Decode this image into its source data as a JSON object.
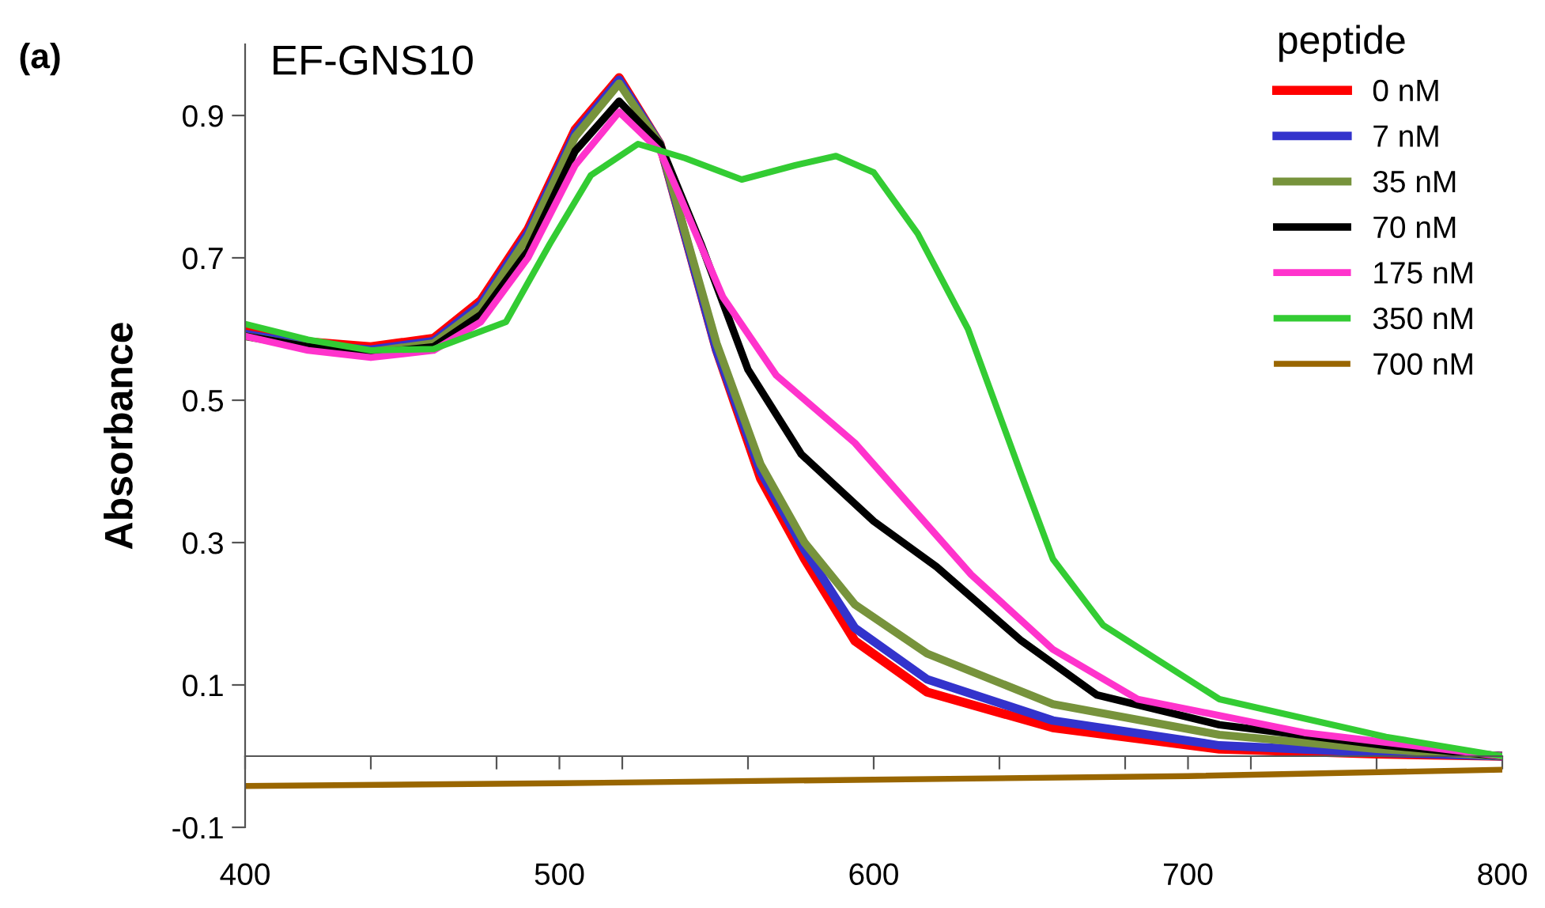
{
  "chart_data": {
    "type": "line",
    "title": "EF-GNS10",
    "ylabel": "Absorbance",
    "legend_title": "peptide",
    "legend": "top right",
    "grid": false,
    "annotations": [
      "(a)"
    ],
    "xlim": [
      400,
      800
    ],
    "ylim": [
      -0.1,
      1.0
    ],
    "xticks": [
      400,
      {
        "value": 440,
        "label": null
      },
      {
        "value": 480,
        "label": null
      },
      500,
      {
        "value": 520,
        "label": null
      },
      {
        "value": 560,
        "label": null
      },
      600,
      {
        "value": 640,
        "label": null
      },
      {
        "value": 680,
        "label": null
      },
      700,
      {
        "value": 720,
        "label": null
      },
      {
        "value": 760,
        "label": null
      },
      800
    ],
    "yticks": [
      -0.1,
      0.1,
      0.3,
      0.5,
      0.7,
      0.9
    ],
    "series": [
      {
        "name": "0 nM",
        "color": "#ff0000",
        "x": [
          400,
          420,
          440,
          460,
          475,
          490,
          505,
          519,
          532,
          550,
          564,
          578,
          594,
          617,
          657,
          710,
          760,
          800
        ],
        "values": [
          0.597,
          0.582,
          0.575,
          0.587,
          0.64,
          0.74,
          0.88,
          0.953,
          0.86,
          0.57,
          0.39,
          0.277,
          0.162,
          0.09,
          0.04,
          0.01,
          0.003,
          0.0
        ]
      },
      {
        "name": "7 nM",
        "color": "#3333cc",
        "x": [
          400,
          420,
          440,
          460,
          475,
          490,
          505,
          519,
          532,
          550,
          564,
          578,
          594,
          617,
          657,
          710,
          760,
          800
        ],
        "values": [
          0.593,
          0.578,
          0.571,
          0.583,
          0.635,
          0.735,
          0.875,
          0.95,
          0.86,
          0.57,
          0.4,
          0.29,
          0.18,
          0.108,
          0.05,
          0.015,
          0.005,
          0.0
        ]
      },
      {
        "name": "35 nM",
        "color": "#77933c",
        "x": [
          400,
          420,
          440,
          460,
          475,
          490,
          505,
          519,
          532,
          550,
          564,
          578,
          594,
          617,
          657,
          710,
          760,
          800
        ],
        "values": [
          0.59,
          0.575,
          0.568,
          0.58,
          0.63,
          0.73,
          0.87,
          0.945,
          0.86,
          0.58,
          0.41,
          0.3,
          0.213,
          0.144,
          0.073,
          0.03,
          0.01,
          0.0
        ]
      },
      {
        "name": "70 nM",
        "color": "#000000",
        "x": [
          400,
          420,
          440,
          460,
          475,
          490,
          505,
          519,
          532,
          545,
          560,
          577,
          600,
          620,
          647,
          671,
          710,
          763,
          800
        ],
        "values": [
          0.59,
          0.575,
          0.566,
          0.575,
          0.62,
          0.71,
          0.85,
          0.92,
          0.86,
          0.72,
          0.543,
          0.424,
          0.33,
          0.266,
          0.162,
          0.086,
          0.044,
          0.015,
          0.0
        ]
      },
      {
        "name": "175 nM",
        "color": "#ff33cc",
        "x": [
          400,
          420,
          440,
          460,
          475,
          490,
          505,
          519,
          532,
          538,
          552,
          569,
          594,
          604,
          631,
          657,
          684,
          737,
          800
        ],
        "values": [
          0.59,
          0.57,
          0.56,
          0.57,
          0.61,
          0.7,
          0.83,
          0.905,
          0.85,
          0.79,
          0.645,
          0.535,
          0.44,
          0.39,
          0.255,
          0.15,
          0.08,
          0.033,
          0.0
        ]
      },
      {
        "name": "350 nM",
        "color": "#33cc33",
        "x": [
          400,
          420,
          440,
          460,
          483,
          497,
          510,
          525,
          540,
          558,
          575,
          588,
          600,
          614,
          630,
          647,
          657,
          673,
          710,
          763,
          800
        ],
        "values": [
          0.607,
          0.585,
          0.57,
          0.572,
          0.61,
          0.72,
          0.816,
          0.86,
          0.84,
          0.81,
          0.83,
          0.843,
          0.82,
          0.734,
          0.6,
          0.395,
          0.277,
          0.184,
          0.08,
          0.027,
          0.0
        ]
      },
      {
        "name": "700 nM",
        "color": "#996600",
        "x": [
          400,
          500,
          600,
          700,
          800
        ],
        "values": [
          -0.042,
          -0.038,
          -0.033,
          -0.028,
          -0.019
        ]
      }
    ]
  }
}
